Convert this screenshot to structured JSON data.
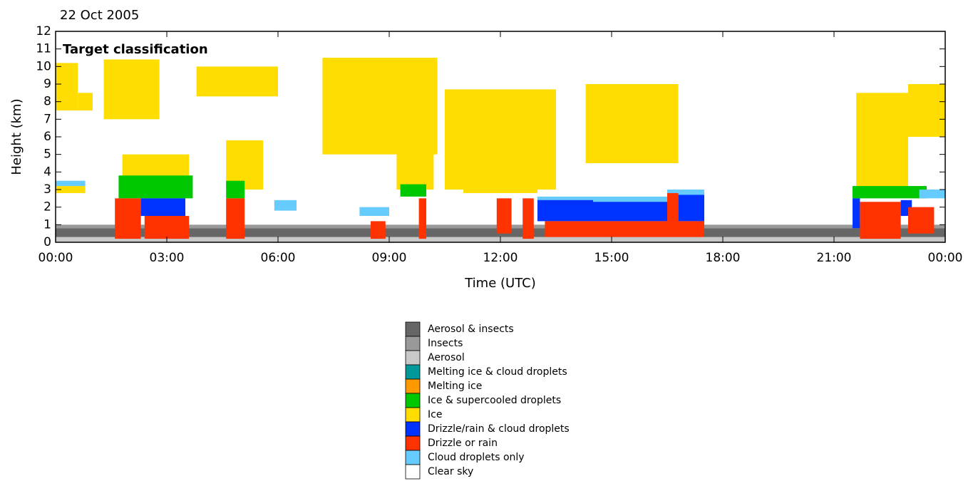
{
  "chart_data": {
    "type": "classification",
    "title": "22 Oct 2005",
    "subtitle": "Target classification",
    "x_label": "Time (UTC)",
    "y_label": "Height (km)",
    "xlim": [
      0,
      24
    ],
    "ylim": [
      0,
      12
    ],
    "xticks": [
      {
        "value": 0,
        "label": "00:00"
      },
      {
        "value": 3,
        "label": "03:00"
      },
      {
        "value": 6,
        "label": "06:00"
      },
      {
        "value": 9,
        "label": "09:00"
      },
      {
        "value": 12,
        "label": "12:00"
      },
      {
        "value": 15,
        "label": "15:00"
      },
      {
        "value": 18,
        "label": "18:00"
      },
      {
        "value": 21,
        "label": "21:00"
      },
      {
        "value": 24,
        "label": "00:00"
      }
    ],
    "yticks": [
      0,
      1,
      2,
      3,
      4,
      5,
      6,
      7,
      8,
      9,
      10,
      11,
      12
    ],
    "classes": [
      {
        "name": "Aerosol & insects",
        "color": "#666666"
      },
      {
        "name": "Insects",
        "color": "#999999"
      },
      {
        "name": "Aerosol",
        "color": "#c8c8c8"
      },
      {
        "name": "Melting ice & cloud droplets",
        "color": "#009999"
      },
      {
        "name": "Melting ice",
        "color": "#ff9900"
      },
      {
        "name": "Ice & supercooled droplets",
        "color": "#00c800"
      },
      {
        "name": "Ice",
        "color": "#ffdd00"
      },
      {
        "name": "Drizzle/rain & cloud droplets",
        "color": "#0033ff"
      },
      {
        "name": "Drizzle or rain",
        "color": "#ff3300"
      },
      {
        "name": "Cloud droplets only",
        "color": "#66ccff"
      },
      {
        "name": "Clear sky",
        "color": "#ffffff"
      }
    ],
    "regions": [
      {
        "class": 2,
        "x": [
          0,
          24
        ],
        "y": [
          0,
          0.3
        ]
      },
      {
        "class": 1,
        "x": [
          0,
          24
        ],
        "y": [
          0.8,
          1.0
        ]
      },
      {
        "class": 0,
        "x": [
          0,
          24
        ],
        "y": [
          0.3,
          0.8
        ]
      },
      {
        "class": 6,
        "x": [
          0,
          0.6
        ],
        "y": [
          7.5,
          10.2
        ]
      },
      {
        "class": 6,
        "x": [
          0.6,
          1.0
        ],
        "y": [
          7.5,
          8.5
        ]
      },
      {
        "class": 6,
        "x": [
          1.3,
          2.8
        ],
        "y": [
          7,
          10.4
        ]
      },
      {
        "class": 6,
        "x": [
          3.8,
          6
        ],
        "y": [
          8.3,
          10
        ]
      },
      {
        "class": 6,
        "x": [
          7.2,
          10.3
        ],
        "y": [
          5,
          10.5
        ]
      },
      {
        "class": 6,
        "x": [
          10.5,
          13.5
        ],
        "y": [
          3,
          8.7
        ]
      },
      {
        "class": 6,
        "x": [
          11,
          13
        ],
        "y": [
          2.8,
          6
        ]
      },
      {
        "class": 6,
        "x": [
          14.3,
          16.8
        ],
        "y": [
          4.5,
          9
        ]
      },
      {
        "class": 6,
        "x": [
          1.8,
          3.6
        ],
        "y": [
          2.8,
          5
        ]
      },
      {
        "class": 6,
        "x": [
          4.6,
          5.6
        ],
        "y": [
          3,
          5.8
        ]
      },
      {
        "class": 6,
        "x": [
          9.2,
          10.2
        ],
        "y": [
          3,
          6
        ]
      },
      {
        "class": 6,
        "x": [
          21.6,
          23
        ],
        "y": [
          3,
          8.5
        ]
      },
      {
        "class": 6,
        "x": [
          23,
          24
        ],
        "y": [
          6,
          9
        ]
      },
      {
        "class": 6,
        "x": [
          0,
          0.8
        ],
        "y": [
          2.8,
          3.2
        ]
      },
      {
        "class": 5,
        "x": [
          1.7,
          3.7
        ],
        "y": [
          2.5,
          3.8
        ]
      },
      {
        "class": 5,
        "x": [
          4.6,
          5.1
        ],
        "y": [
          2.5,
          3.5
        ]
      },
      {
        "class": 5,
        "x": [
          21.5,
          23.5
        ],
        "y": [
          2.5,
          3.2
        ]
      },
      {
        "class": 5,
        "x": [
          9.3,
          10
        ],
        "y": [
          2.6,
          3.3
        ]
      },
      {
        "class": 9,
        "x": [
          0,
          0.8
        ],
        "y": [
          3.2,
          3.5
        ]
      },
      {
        "class": 9,
        "x": [
          13,
          16.5
        ],
        "y": [
          2,
          2.6
        ]
      },
      {
        "class": 9,
        "x": [
          16.5,
          17.5
        ],
        "y": [
          2.6,
          3
        ]
      },
      {
        "class": 9,
        "x": [
          8.2,
          9
        ],
        "y": [
          1.5,
          2
        ]
      },
      {
        "class": 9,
        "x": [
          5.9,
          6.5
        ],
        "y": [
          1.8,
          2.4
        ]
      },
      {
        "class": 9,
        "x": [
          23.3,
          24
        ],
        "y": [
          2.5,
          3
        ]
      },
      {
        "class": 7,
        "x": [
          2.3,
          3.5
        ],
        "y": [
          1.5,
          2.5
        ]
      },
      {
        "class": 7,
        "x": [
          13,
          14.5
        ],
        "y": [
          1.2,
          2.4
        ]
      },
      {
        "class": 7,
        "x": [
          14.5,
          16.5
        ],
        "y": [
          1.2,
          2.3
        ]
      },
      {
        "class": 7,
        "x": [
          16.8,
          17.5
        ],
        "y": [
          1.2,
          2.7
        ]
      },
      {
        "class": 7,
        "x": [
          21.5,
          21.7
        ],
        "y": [
          0.8,
          2.5
        ]
      },
      {
        "class": 7,
        "x": [
          22.8,
          23.1
        ],
        "y": [
          1.5,
          2.4
        ]
      },
      {
        "class": 8,
        "x": [
          1.6,
          2.3
        ],
        "y": [
          0.2,
          2.5
        ]
      },
      {
        "class": 8,
        "x": [
          2.4,
          3.6
        ],
        "y": [
          0.2,
          1.5
        ]
      },
      {
        "class": 8,
        "x": [
          4.6,
          5.1
        ],
        "y": [
          0.2,
          2.5
        ]
      },
      {
        "class": 8,
        "x": [
          9.8,
          10
        ],
        "y": [
          0.2,
          2.5
        ]
      },
      {
        "class": 8,
        "x": [
          8.5,
          8.9
        ],
        "y": [
          0.2,
          1.2
        ]
      },
      {
        "class": 8,
        "x": [
          11.9,
          12.3
        ],
        "y": [
          0.5,
          2.5
        ]
      },
      {
        "class": 8,
        "x": [
          12.6,
          12.9
        ],
        "y": [
          0.2,
          2.5
        ]
      },
      {
        "class": 8,
        "x": [
          13.2,
          17.5
        ],
        "y": [
          0.3,
          1.2
        ]
      },
      {
        "class": 8,
        "x": [
          16.5,
          16.8
        ],
        "y": [
          0.5,
          2.8
        ]
      },
      {
        "class": 8,
        "x": [
          21.7,
          22.8
        ],
        "y": [
          0.2,
          2.3
        ]
      },
      {
        "class": 8,
        "x": [
          23,
          23.7
        ],
        "y": [
          0.5,
          2
        ]
      }
    ]
  }
}
